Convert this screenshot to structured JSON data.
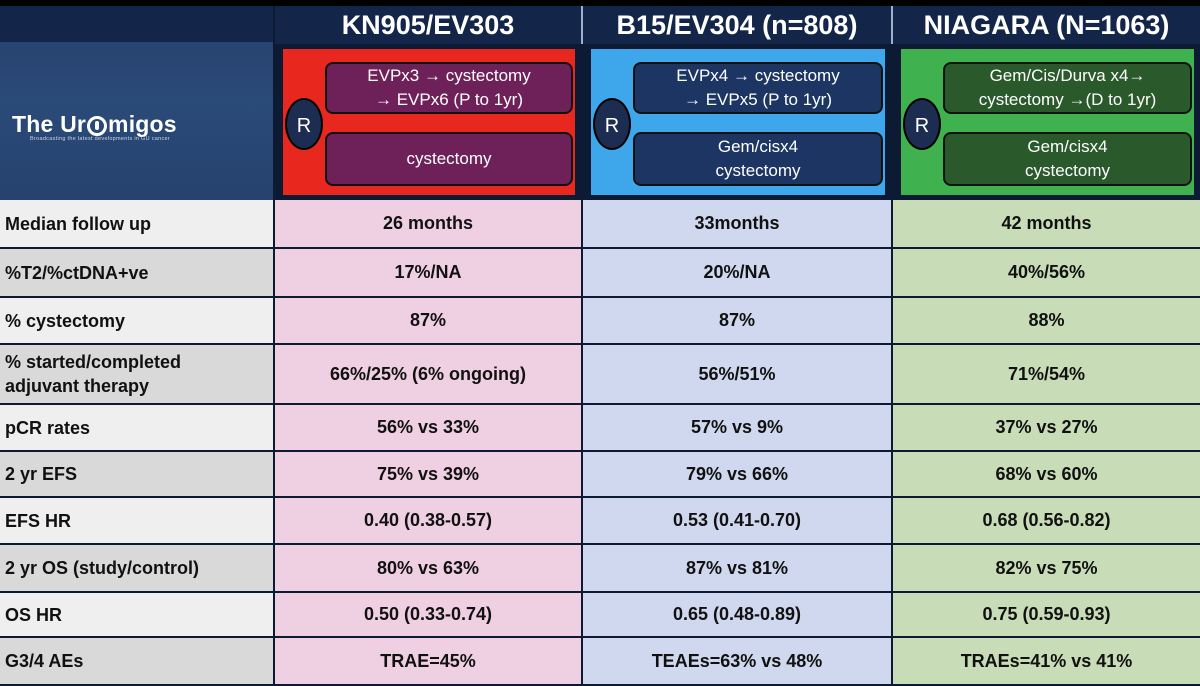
{
  "logo": {
    "text_before": "The Ur",
    "text_after": "migos",
    "tagline": "Broadcasting the latest developments in GU cancer"
  },
  "trials": [
    {
      "name": "KN905/EV303",
      "randomization_label": "R",
      "experimental_arm": "EVPx3 → cystectomy\n→ EVPx6 (P to 1yr)",
      "control_arm": "cystectomy",
      "panel_color": "#e8281e",
      "box_color": "#6e2159",
      "cell_color": "#efd0e2"
    },
    {
      "name": "B15/EV304 (n=808)",
      "randomization_label": "R",
      "experimental_arm": "EVPx4 → cystectomy\n→ EVPx5 (P to 1yr)",
      "control_arm": "Gem/cisx4\ncystectomy",
      "panel_color": "#3ea6ea",
      "box_color": "#1c3563",
      "cell_color": "#cfd8ee"
    },
    {
      "name": "NIAGARA (N=1063)",
      "randomization_label": "R",
      "experimental_arm": "Gem/Cis/Durva x4→\ncystectomy →(D  to 1yr)",
      "control_arm": "Gem/cisx4\ncystectomy",
      "panel_color": "#3fb14e",
      "box_color": "#2a5a2c",
      "cell_color": "#c9dcb8"
    }
  ],
  "rows": [
    {
      "label": "Median follow up",
      "values": [
        "26 months",
        "33months",
        "42 months"
      ]
    },
    {
      "label": "%T2/%ctDNA+ve",
      "values": [
        "17%/NA",
        "20%/NA",
        "40%/56%"
      ]
    },
    {
      "label": "% cystectomy",
      "values": [
        "87%",
        "87%",
        "88%"
      ]
    },
    {
      "label": "% started/completed\nadjuvant therapy",
      "values": [
        "66%/25%  (6% ongoing)",
        "56%/51%",
        "71%/54%"
      ]
    },
    {
      "label": "pCR rates",
      "values": [
        "56%  vs 33%",
        "57%  vs 9%",
        "37%  vs 27%"
      ]
    },
    {
      "label": "2 yr EFS",
      "values": [
        "75%  vs 39%",
        "79%  vs 66%",
        "68%  vs 60%"
      ]
    },
    {
      "label": "EFS HR",
      "values": [
        "0.40 (0.38-0.57)",
        "0.53 (0.41-0.70)",
        "0.68 (0.56-0.82)"
      ]
    },
    {
      "label": "2 yr OS (study/control)",
      "values": [
        "80%  vs 63%",
        "87%  vs 81%",
        "82%  vs 75%"
      ]
    },
    {
      "label": "OS HR",
      "values": [
        "0.50 (0.33-0.74)",
        "0.65 (0.48-0.89)",
        "0.75 (0.59-0.93)"
      ]
    },
    {
      "label": "G3/4 AEs",
      "values": [
        "TRAE=45%",
        "TEAEs=63%  vs 48%",
        "TRAEs=41%  vs 41%"
      ]
    }
  ],
  "label_colors": [
    "#efefef",
    "#d9d9d9"
  ]
}
